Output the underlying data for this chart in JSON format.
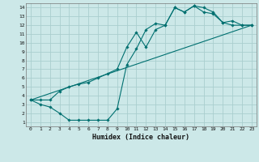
{
  "xlabel": "Humidex (Indice chaleur)",
  "xlim": [
    -0.5,
    23.5
  ],
  "ylim": [
    0.5,
    14.5
  ],
  "xticks": [
    0,
    1,
    2,
    3,
    4,
    5,
    6,
    7,
    8,
    9,
    10,
    11,
    12,
    13,
    14,
    15,
    16,
    17,
    18,
    19,
    20,
    21,
    22,
    23
  ],
  "yticks": [
    1,
    2,
    3,
    4,
    5,
    6,
    7,
    8,
    9,
    10,
    11,
    12,
    13,
    14
  ],
  "bg_color": "#cce8e8",
  "grid_color": "#aacece",
  "line_color": "#007070",
  "line1_x": [
    0,
    1,
    2,
    3,
    4,
    5,
    6,
    7,
    8,
    9,
    10,
    11,
    12,
    13,
    14,
    15,
    16,
    17,
    18,
    19,
    20,
    21,
    22,
    23
  ],
  "line1_y": [
    3.5,
    3.0,
    2.7,
    2.0,
    1.2,
    1.2,
    1.2,
    1.2,
    1.2,
    2.5,
    7.5,
    9.3,
    11.5,
    12.2,
    12.0,
    14.0,
    13.5,
    14.2,
    14.0,
    13.5,
    12.3,
    12.0,
    12.0,
    12.0
  ],
  "line2_x": [
    0,
    1,
    2,
    3,
    4,
    5,
    6,
    7,
    8,
    9,
    10,
    11,
    12,
    13,
    14,
    15,
    16,
    17,
    18,
    19,
    20,
    21,
    22,
    23
  ],
  "line2_y": [
    3.5,
    3.5,
    3.5,
    4.5,
    5.0,
    5.3,
    5.5,
    6.0,
    6.5,
    7.0,
    9.5,
    11.2,
    9.5,
    11.5,
    12.0,
    14.0,
    13.5,
    14.2,
    13.5,
    13.3,
    12.3,
    12.5,
    12.0,
    12.0
  ],
  "line3_x": [
    0,
    23
  ],
  "line3_y": [
    3.5,
    12.0
  ]
}
